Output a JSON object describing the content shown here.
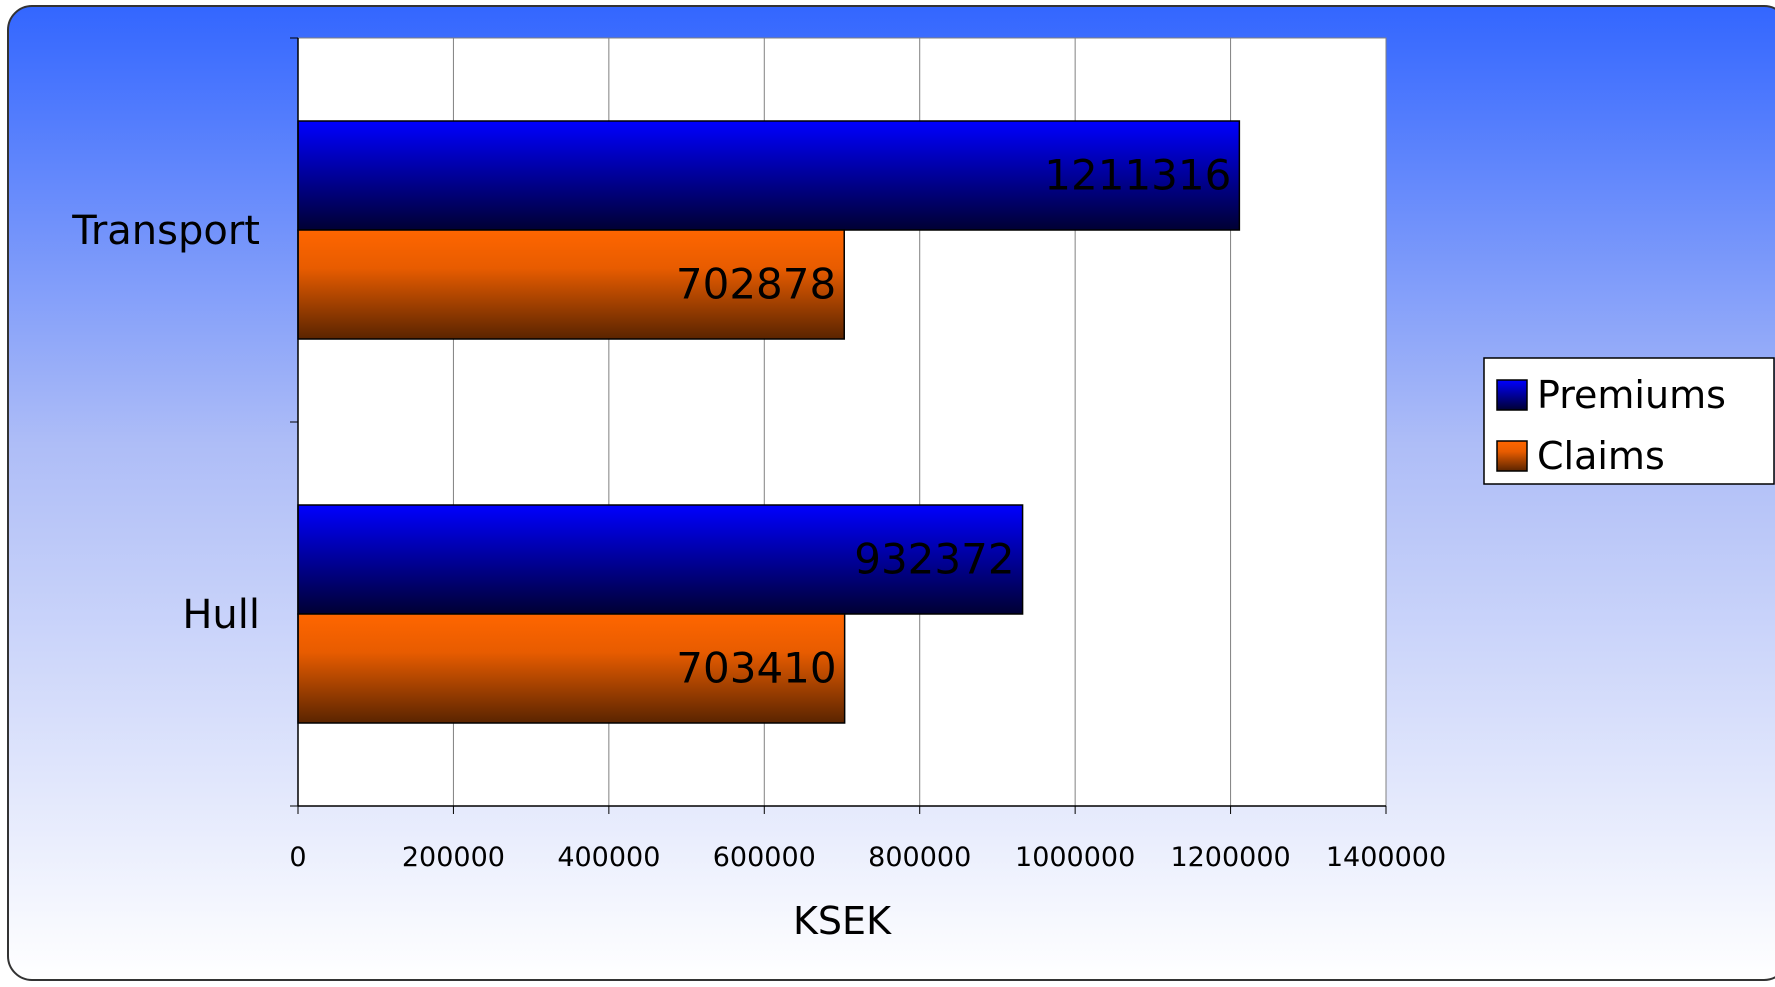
{
  "chart_data": {
    "type": "bar",
    "orientation": "horizontal",
    "categories": [
      "Transport",
      "Hull"
    ],
    "series": [
      {
        "name": "Premiums",
        "values": [
          1211316,
          932372
        ]
      },
      {
        "name": "Claims",
        "values": [
          702878,
          703410
        ]
      }
    ],
    "xlabel": "KSEK",
    "ylabel": "",
    "xlim": [
      0,
      1400000
    ],
    "x_ticks": [
      "0",
      "200000",
      "400000",
      "600000",
      "800000",
      "1000000",
      "1200000",
      "1400000"
    ],
    "data_labels": true,
    "grid": true,
    "legend_position": "right"
  },
  "colors": {
    "premiums": "#0000CC",
    "claims": "#FF6600",
    "background_top": "#3366FF",
    "background_bottom": "#FFFFFF"
  }
}
